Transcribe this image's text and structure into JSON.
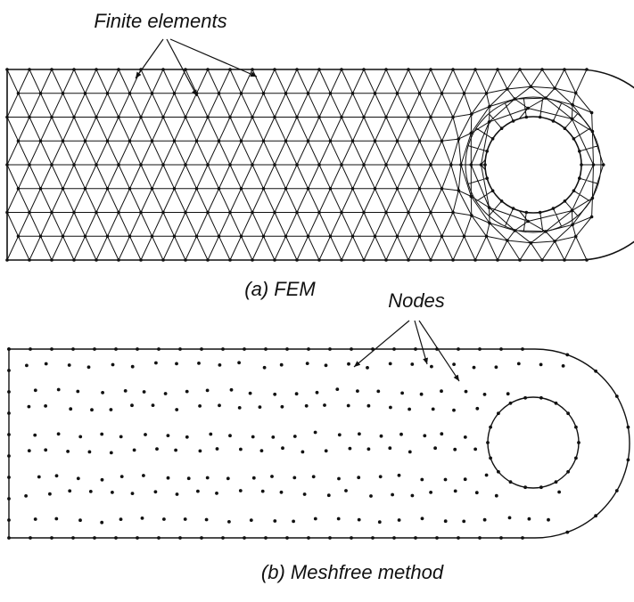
{
  "panel_a": {
    "callout_label": "Finite elements",
    "caption": "(a) FEM"
  },
  "panel_b": {
    "callout_label": "Nodes",
    "caption": "(b) Meshfree method"
  },
  "colors": {
    "ink": "#111111",
    "background": "#ffffff"
  }
}
